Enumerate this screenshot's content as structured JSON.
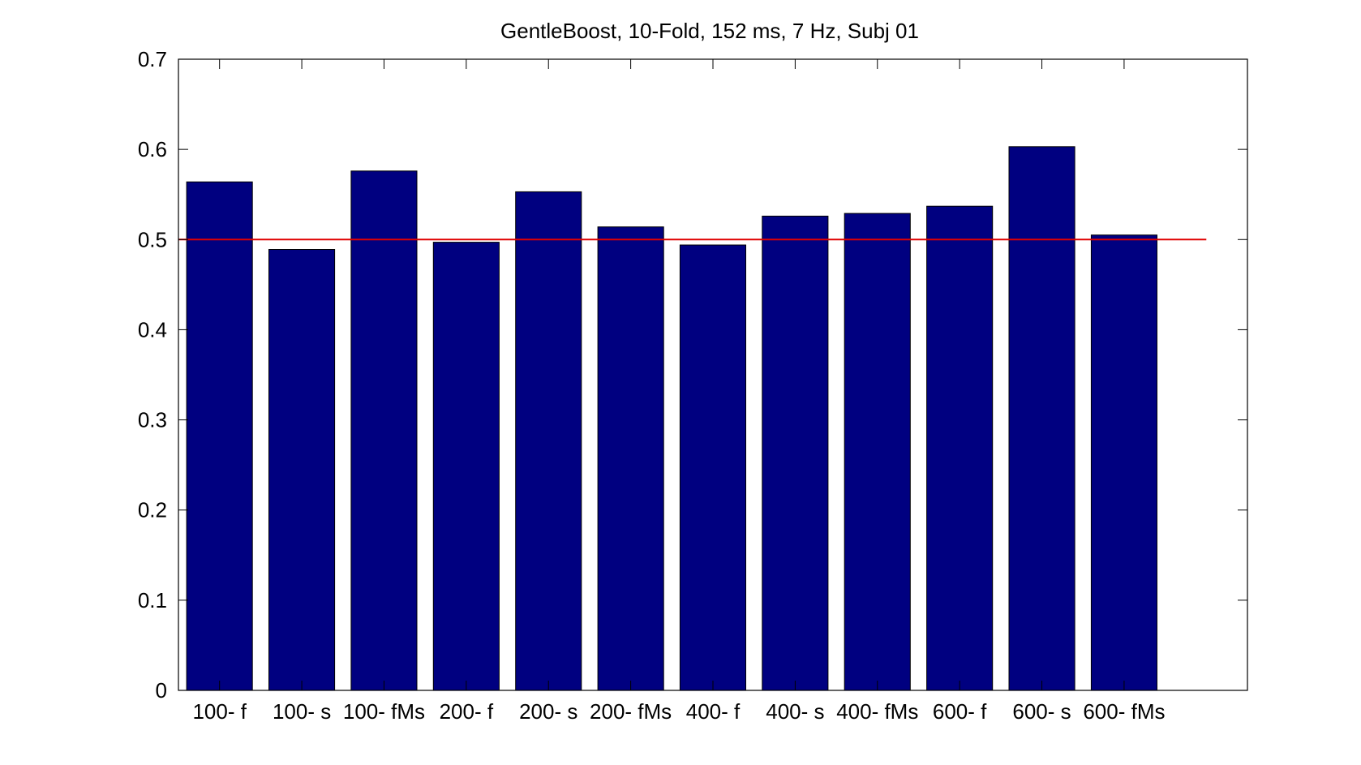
{
  "chart_data": {
    "type": "bar",
    "title": "GentleBoost, 10-Fold, 152 ms, 7 Hz, Subj 01",
    "xlabel": "",
    "ylabel": "",
    "categories": [
      "100- f",
      "100- s",
      "100- fMs",
      "200- f",
      "200- s",
      "200- fMs",
      "400- f",
      "400- s",
      "400- fMs",
      "600- f",
      "600- s",
      "600- fMs"
    ],
    "values": [
      0.564,
      0.489,
      0.576,
      0.497,
      0.553,
      0.514,
      0.494,
      0.526,
      0.529,
      0.537,
      0.603,
      0.505
    ],
    "ylim": [
      0,
      0.7
    ],
    "yticks": [
      0,
      0.1,
      0.2,
      0.3,
      0.4,
      0.5,
      0.6,
      0.7
    ],
    "ytick_labels": [
      "0",
      "0.1",
      "0.2",
      "0.3",
      "0.4",
      "0.5",
      "0.6",
      "0.7"
    ],
    "xlim": [
      0.5,
      13.5
    ],
    "reference_line": {
      "y": 0.5,
      "x_from": 0.5,
      "x_to": 13.0
    },
    "grid": false,
    "legend": "none",
    "bar_color": "#000080",
    "reference_line_color": "#e00000"
  }
}
